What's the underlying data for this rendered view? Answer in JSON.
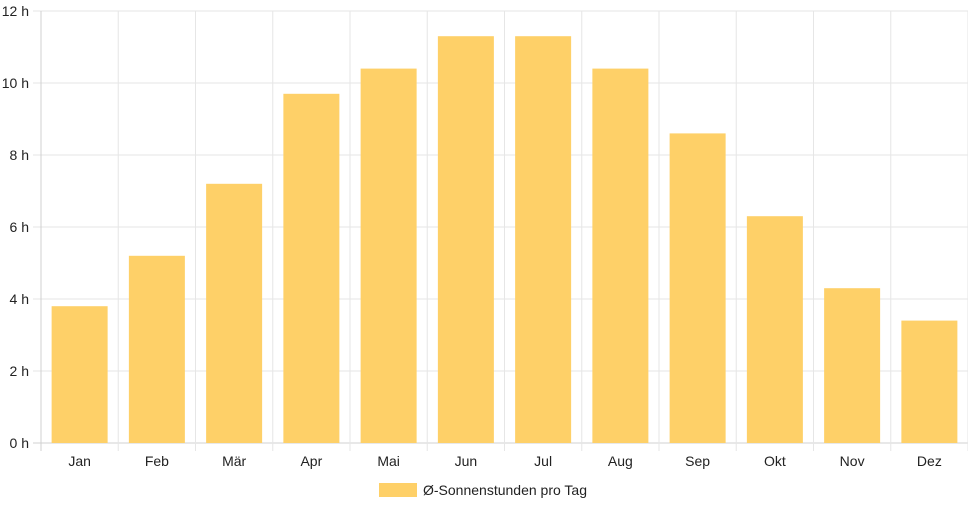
{
  "chart_data": {
    "type": "bar",
    "categories": [
      "Jan",
      "Feb",
      "Mär",
      "Apr",
      "Mai",
      "Jun",
      "Jul",
      "Aug",
      "Sep",
      "Okt",
      "Nov",
      "Dez"
    ],
    "series": [
      {
        "name": "Ø-Sonnenstunden pro Tag",
        "values": [
          3.8,
          5.2,
          7.2,
          9.7,
          10.4,
          11.3,
          11.3,
          10.4,
          8.6,
          6.3,
          4.3,
          3.4
        ],
        "color": "#fed068"
      }
    ],
    "yticks": [
      "0 h",
      "2 h",
      "4 h",
      "6 h",
      "8 h",
      "10 h",
      "12 h"
    ],
    "ylim": [
      0,
      12
    ],
    "ystep": 2,
    "grid": true,
    "legend_position": "bottom",
    "title": "",
    "xlabel": "",
    "ylabel": ""
  },
  "colors": {
    "grid": "#e6e6e6",
    "axis": "#d0d0d0",
    "text": "#222222"
  }
}
